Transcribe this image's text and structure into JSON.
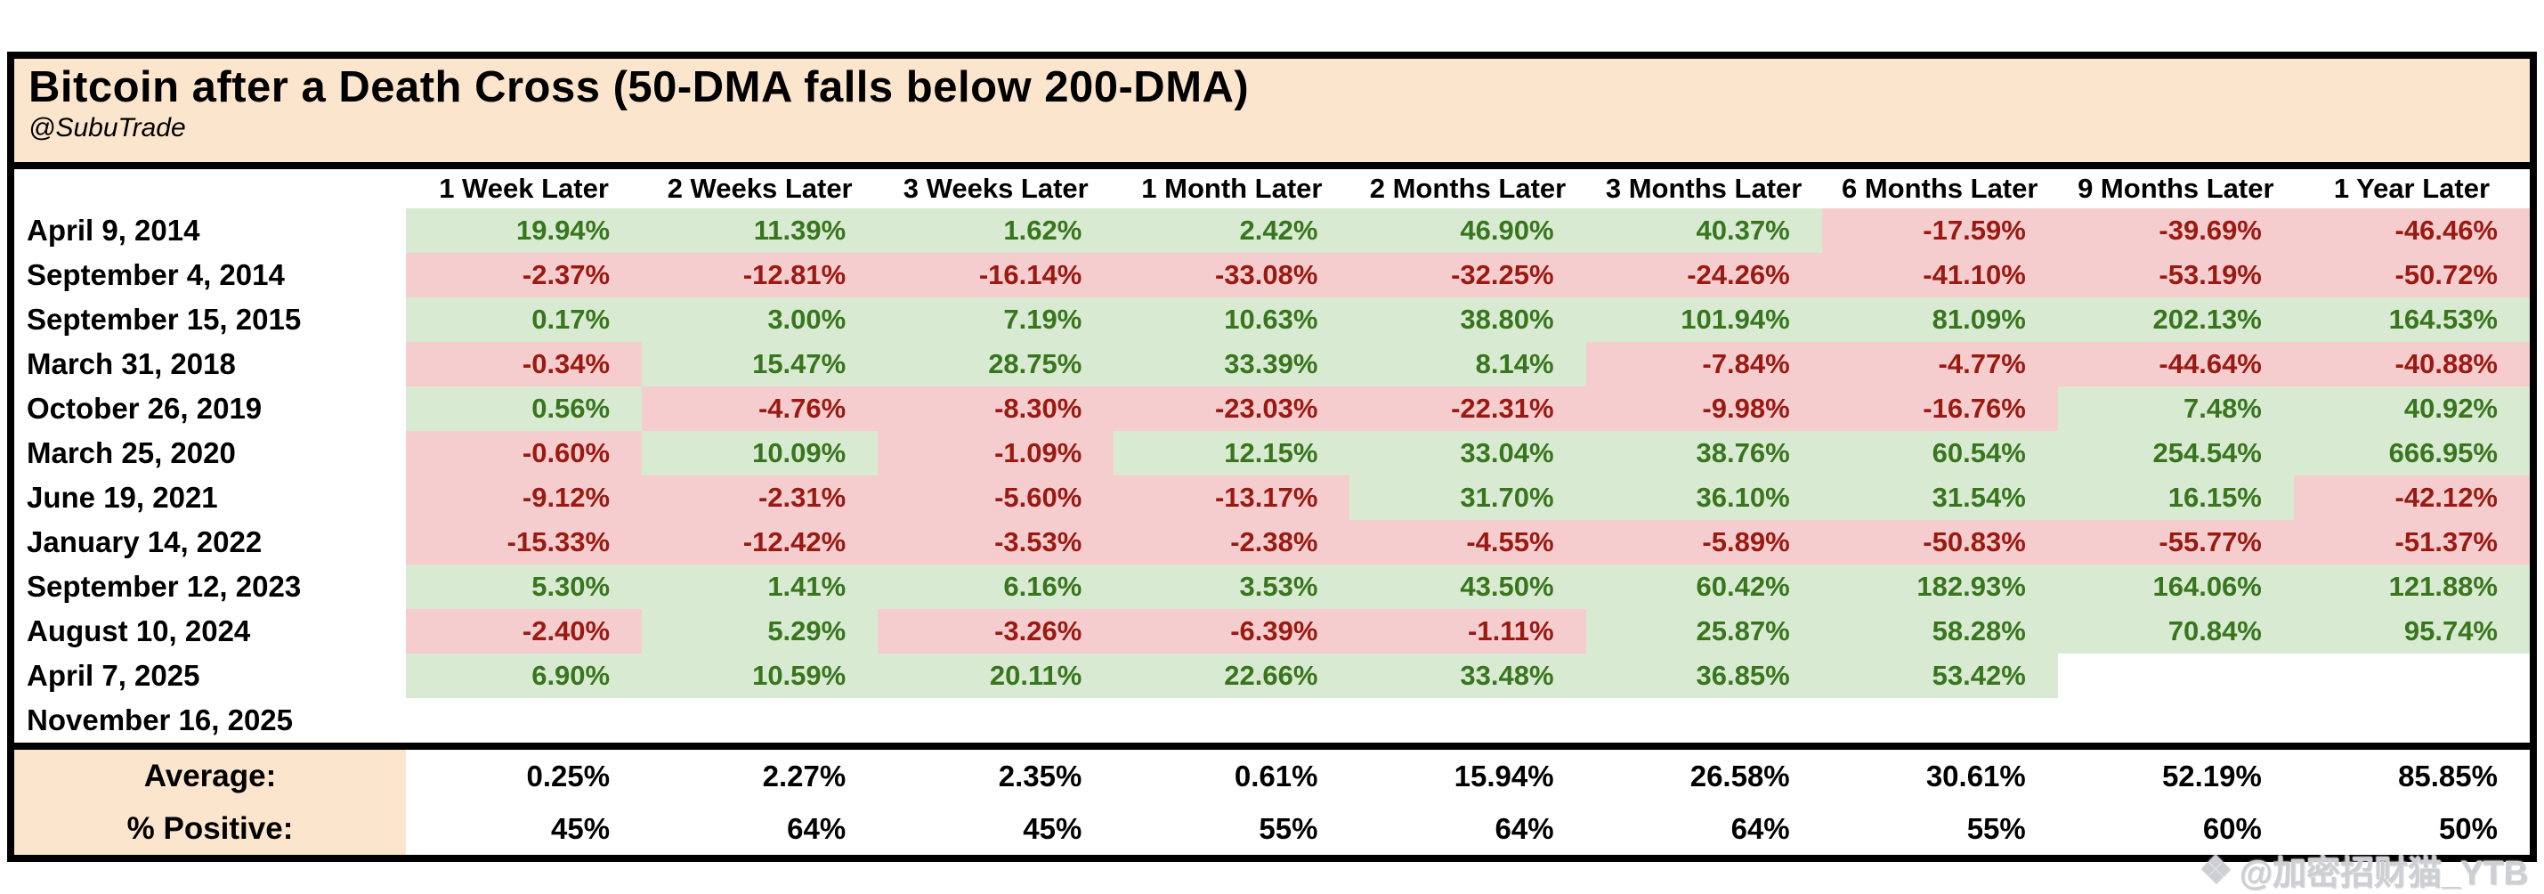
{
  "chart_data": {
    "type": "table",
    "title": "Bitcoin after a Death Cross (50-DMA falls below 200-DMA)",
    "subtitle": "@SubuTrade",
    "column_headers": [
      "1 Week Later",
      "2 Weeks Later",
      "3 Weeks Later",
      "1 Month Later",
      "2 Months Later",
      "3 Months Later",
      "6 Months Later",
      "9 Months Later",
      "1 Year Later"
    ],
    "rows": [
      {
        "date": "April 9, 2014",
        "values": [
          "19.94%",
          "11.39%",
          "1.62%",
          "2.42%",
          "46.90%",
          "40.37%",
          "-17.59%",
          "-39.69%",
          "-46.46%"
        ]
      },
      {
        "date": "September 4, 2014",
        "values": [
          "-2.37%",
          "-12.81%",
          "-16.14%",
          "-33.08%",
          "-32.25%",
          "-24.26%",
          "-41.10%",
          "-53.19%",
          "-50.72%"
        ]
      },
      {
        "date": "September 15, 2015",
        "values": [
          "0.17%",
          "3.00%",
          "7.19%",
          "10.63%",
          "38.80%",
          "101.94%",
          "81.09%",
          "202.13%",
          "164.53%"
        ]
      },
      {
        "date": "March 31, 2018",
        "values": [
          "-0.34%",
          "15.47%",
          "28.75%",
          "33.39%",
          "8.14%",
          "-7.84%",
          "-4.77%",
          "-44.64%",
          "-40.88%"
        ]
      },
      {
        "date": "October 26, 2019",
        "values": [
          "0.56%",
          "-4.76%",
          "-8.30%",
          "-23.03%",
          "-22.31%",
          "-9.98%",
          "-16.76%",
          "7.48%",
          "40.92%"
        ]
      },
      {
        "date": "March 25, 2020",
        "values": [
          "-0.60%",
          "10.09%",
          "-1.09%",
          "12.15%",
          "33.04%",
          "38.76%",
          "60.54%",
          "254.54%",
          "666.95%"
        ]
      },
      {
        "date": "June 19, 2021",
        "values": [
          "-9.12%",
          "-2.31%",
          "-5.60%",
          "-13.17%",
          "31.70%",
          "36.10%",
          "31.54%",
          "16.15%",
          "-42.12%"
        ]
      },
      {
        "date": "January 14, 2022",
        "values": [
          "-15.33%",
          "-12.42%",
          "-3.53%",
          "-2.38%",
          "-4.55%",
          "-5.89%",
          "-50.83%",
          "-55.77%",
          "-51.37%"
        ]
      },
      {
        "date": "September 12, 2023",
        "values": [
          "5.30%",
          "1.41%",
          "6.16%",
          "3.53%",
          "43.50%",
          "60.42%",
          "182.93%",
          "164.06%",
          "121.88%"
        ]
      },
      {
        "date": "August 10, 2024",
        "values": [
          "-2.40%",
          "5.29%",
          "-3.26%",
          "-6.39%",
          "-1.11%",
          "25.87%",
          "58.28%",
          "70.84%",
          "95.74%"
        ]
      },
      {
        "date": "April 7, 2025",
        "values": [
          "6.90%",
          "10.59%",
          "20.11%",
          "22.66%",
          "33.48%",
          "36.85%",
          "53.42%",
          "",
          ""
        ]
      },
      {
        "date": "November 16, 2025",
        "values": [
          "",
          "",
          "",
          "",
          "",
          "",
          "",
          "",
          ""
        ]
      }
    ],
    "summary": {
      "average_label": "Average:",
      "average": [
        "0.25%",
        "2.27%",
        "2.35%",
        "0.61%",
        "15.94%",
        "26.58%",
        "30.61%",
        "52.19%",
        "85.85%"
      ],
      "positive_label": "% Positive:",
      "percent_positive": [
        "45%",
        "64%",
        "45%",
        "55%",
        "64%",
        "64%",
        "55%",
        "60%",
        "50%"
      ]
    }
  },
  "watermark": {
    "icon": "binance-diamond-icon",
    "text": "@加密招财猫_YTB"
  },
  "colors": {
    "title_bg": "#fce5cd",
    "positive_bg": "#d9ead3",
    "negative_bg": "#f5cdce",
    "positive_text": "#38761d",
    "negative_text": "#9a1a12",
    "border": "#000000"
  }
}
